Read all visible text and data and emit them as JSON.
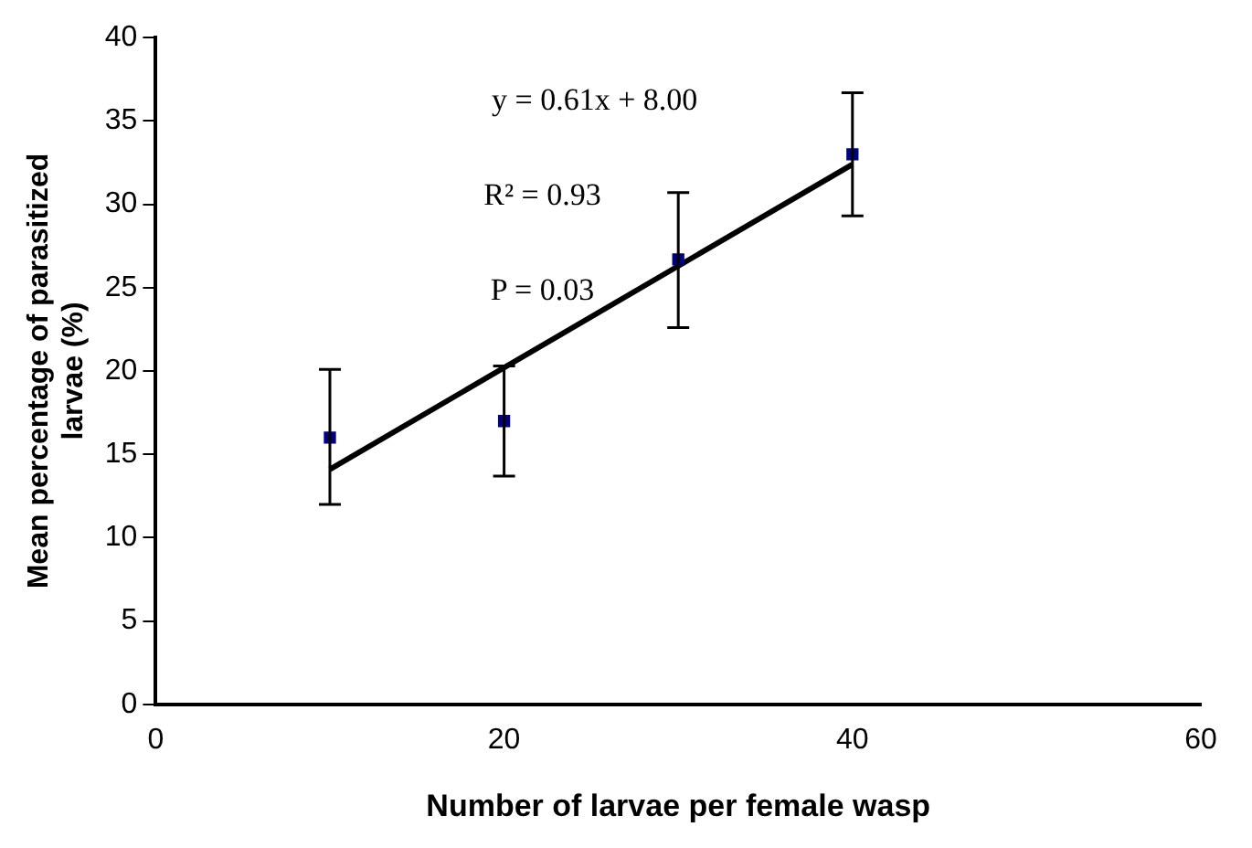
{
  "chart_data": {
    "type": "scatter",
    "xlabel": "Number of larvae per female wasp",
    "ylabel": "Mean percentage of parasitized larvae (%)",
    "xlim": [
      0,
      60
    ],
    "xticks": [
      0,
      20,
      40,
      60
    ],
    "ylim": [
      0,
      40
    ],
    "yticks": [
      0,
      5,
      10,
      15,
      20,
      25,
      30,
      35,
      40
    ],
    "grid": false,
    "legend": false,
    "marker": "square",
    "series": [
      {
        "color": "#000080",
        "x": [
          10,
          20,
          30,
          40
        ],
        "values": [
          16,
          17,
          26.7,
          33
        ],
        "errors": [
          [
            12,
            20.1
          ],
          [
            13.7,
            20.3
          ],
          [
            22.6,
            30.7
          ],
          [
            29.3,
            36.7
          ]
        ]
      },
      {
        "type": "line",
        "color": "#000000",
        "x": [
          10,
          40
        ],
        "values": [
          14.1,
          32.4
        ],
        "line_style": "solid",
        "marker": "none"
      }
    ],
    "annotations": [
      "y = 0.61x + 8.00",
      "R² = 0.93",
      "P = 0.03"
    ]
  }
}
